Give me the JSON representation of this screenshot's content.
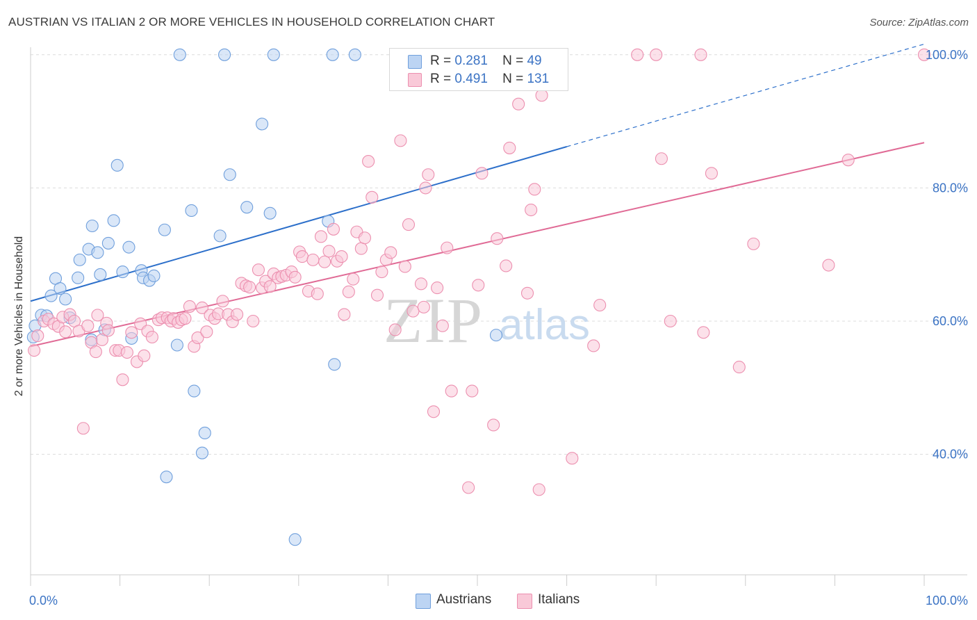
{
  "title": "AUSTRIAN VS ITALIAN 2 OR MORE VEHICLES IN HOUSEHOLD CORRELATION CHART",
  "source": "Source: ZipAtlas.com",
  "watermark": "ZIPatlas",
  "legend": {
    "r_label": "R =",
    "n_label": "N =",
    "rows": [
      {
        "r": "0.281",
        "n": "49",
        "color": "#a9c8f0"
      },
      {
        "r": "0.491",
        "n": "131",
        "color": "#f7b6c9"
      }
    ]
  },
  "bottom_legend": [
    {
      "label": "Austrians",
      "color": "#a9c8f0"
    },
    {
      "label": "Italians",
      "color": "#f7b6c9"
    }
  ],
  "chart_data": {
    "type": "scatter",
    "title": "AUSTRIAN VS ITALIAN 2 OR MORE VEHICLES IN HOUSEHOLD CORRELATION CHART",
    "xlabel": "",
    "ylabel": "2 or more Vehicles in Household",
    "xlim": [
      0,
      100
    ],
    "ylim": [
      20,
      102
    ],
    "x_tick_labels": [
      "0.0%",
      "100.0%"
    ],
    "y_ticks": [
      40,
      60,
      80,
      100
    ],
    "y_tick_labels": [
      "40.0%",
      "60.0%",
      "80.0%",
      "100.0%"
    ],
    "grid": true,
    "legend_position": "top-center",
    "series": [
      {
        "name": "Austrians",
        "color": "#6f9fdc",
        "fill": "#bcd4f3",
        "r": 0.281,
        "n": 49,
        "trend": {
          "x0": 0,
          "y0": 63.0,
          "x1": 60,
          "y1": 86.2,
          "dash_to_x": 100,
          "dash_to_y": 101.6,
          "color": "#2c6fca"
        },
        "points": [
          [
            0.3,
            57.6
          ],
          [
            0.5,
            59.3
          ],
          [
            1.2,
            60.9
          ],
          [
            1.8,
            60.8
          ],
          [
            2.3,
            63.8
          ],
          [
            2.8,
            66.4
          ],
          [
            3.3,
            64.9
          ],
          [
            3.9,
            63.3
          ],
          [
            4.4,
            60.5
          ],
          [
            5.3,
            66.5
          ],
          [
            5.5,
            69.2
          ],
          [
            6.5,
            70.8
          ],
          [
            6.8,
            57.2
          ],
          [
            6.9,
            74.3
          ],
          [
            7.5,
            70.3
          ],
          [
            7.8,
            67.0
          ],
          [
            8.3,
            58.7
          ],
          [
            8.7,
            71.7
          ],
          [
            9.3,
            75.1
          ],
          [
            9.7,
            83.4
          ],
          [
            10.3,
            67.4
          ],
          [
            11.0,
            71.1
          ],
          [
            11.3,
            57.4
          ],
          [
            12.4,
            67.6
          ],
          [
            12.6,
            66.5
          ],
          [
            13.3,
            66.1
          ],
          [
            13.8,
            66.8
          ],
          [
            15.0,
            73.7
          ],
          [
            15.2,
            36.6
          ],
          [
            16.4,
            56.4
          ],
          [
            16.7,
            100.0
          ],
          [
            18.0,
            76.6
          ],
          [
            18.3,
            49.5
          ],
          [
            19.2,
            40.2
          ],
          [
            19.5,
            43.2
          ],
          [
            21.2,
            72.8
          ],
          [
            21.7,
            100.0
          ],
          [
            22.3,
            82.0
          ],
          [
            24.2,
            77.1
          ],
          [
            25.9,
            89.6
          ],
          [
            26.8,
            76.2
          ],
          [
            27.2,
            100.0
          ],
          [
            29.6,
            27.2
          ],
          [
            33.3,
            75.0
          ],
          [
            33.8,
            100.0
          ],
          [
            34.0,
            53.5
          ],
          [
            36.3,
            100.0
          ],
          [
            41.3,
            100.0
          ],
          [
            52.1,
            57.9
          ]
        ]
      },
      {
        "name": "Italians",
        "color": "#ec8faf",
        "fill": "#f9c9d8",
        "r": 0.491,
        "n": 131,
        "trend": {
          "x0": 0,
          "y0": 56.2,
          "x1": 100,
          "y1": 86.8,
          "color": "#e06a95"
        },
        "points": [
          [
            0.4,
            55.6
          ],
          [
            0.8,
            57.8
          ],
          [
            1.5,
            60.0
          ],
          [
            2.0,
            60.3
          ],
          [
            2.6,
            59.6
          ],
          [
            3.1,
            59.2
          ],
          [
            3.6,
            60.6
          ],
          [
            3.9,
            58.4
          ],
          [
            4.4,
            61.0
          ],
          [
            4.9,
            60.0
          ],
          [
            5.4,
            58.5
          ],
          [
            5.9,
            43.9
          ],
          [
            6.4,
            59.3
          ],
          [
            6.8,
            56.8
          ],
          [
            7.3,
            55.4
          ],
          [
            7.5,
            60.9
          ],
          [
            8.0,
            57.2
          ],
          [
            8.5,
            59.7
          ],
          [
            8.7,
            58.6
          ],
          [
            9.5,
            55.6
          ],
          [
            9.9,
            55.6
          ],
          [
            10.3,
            51.2
          ],
          [
            10.8,
            55.3
          ],
          [
            11.3,
            58.3
          ],
          [
            11.9,
            53.9
          ],
          [
            12.3,
            59.6
          ],
          [
            12.7,
            54.8
          ],
          [
            13.1,
            58.5
          ],
          [
            13.6,
            57.6
          ],
          [
            14.3,
            60.2
          ],
          [
            14.7,
            60.5
          ],
          [
            15.3,
            60.5
          ],
          [
            15.7,
            60.0
          ],
          [
            16.0,
            60.4
          ],
          [
            16.5,
            59.8
          ],
          [
            16.9,
            60.2
          ],
          [
            17.3,
            60.4
          ],
          [
            17.8,
            62.2
          ],
          [
            18.3,
            56.2
          ],
          [
            18.7,
            57.5
          ],
          [
            19.2,
            62.0
          ],
          [
            19.7,
            58.4
          ],
          [
            20.1,
            60.9
          ],
          [
            20.6,
            60.4
          ],
          [
            21.0,
            61.1
          ],
          [
            21.5,
            63.0
          ],
          [
            22.1,
            61.0
          ],
          [
            22.6,
            59.9
          ],
          [
            23.1,
            61.0
          ],
          [
            23.6,
            65.7
          ],
          [
            24.1,
            65.3
          ],
          [
            24.5,
            65.1
          ],
          [
            24.9,
            60.0
          ],
          [
            25.5,
            67.7
          ],
          [
            25.9,
            65.0
          ],
          [
            26.3,
            66.0
          ],
          [
            26.8,
            65.2
          ],
          [
            27.2,
            67.1
          ],
          [
            27.7,
            66.5
          ],
          [
            28.1,
            66.7
          ],
          [
            28.6,
            66.9
          ],
          [
            29.2,
            67.4
          ],
          [
            29.6,
            66.6
          ],
          [
            30.1,
            70.4
          ],
          [
            30.4,
            69.7
          ],
          [
            31.1,
            64.5
          ],
          [
            31.6,
            69.2
          ],
          [
            32.1,
            64.1
          ],
          [
            32.5,
            72.7
          ],
          [
            32.9,
            68.9
          ],
          [
            33.4,
            70.5
          ],
          [
            33.9,
            73.8
          ],
          [
            34.3,
            69.0
          ],
          [
            34.8,
            69.7
          ],
          [
            35.1,
            61.0
          ],
          [
            35.6,
            64.4
          ],
          [
            36.1,
            66.3
          ],
          [
            36.5,
            73.4
          ],
          [
            37.0,
            70.9
          ],
          [
            37.4,
            72.5
          ],
          [
            37.8,
            84.0
          ],
          [
            38.2,
            78.6
          ],
          [
            38.8,
            63.9
          ],
          [
            39.3,
            67.4
          ],
          [
            39.8,
            69.2
          ],
          [
            40.3,
            70.3
          ],
          [
            40.8,
            58.7
          ],
          [
            41.4,
            87.1
          ],
          [
            41.9,
            68.2
          ],
          [
            42.3,
            74.5
          ],
          [
            42.8,
            61.5
          ],
          [
            43.7,
            65.6
          ],
          [
            44.0,
            62.1
          ],
          [
            44.2,
            80.0
          ],
          [
            44.5,
            82.0
          ],
          [
            45.1,
            46.4
          ],
          [
            45.5,
            65.0
          ],
          [
            46.1,
            59.3
          ],
          [
            46.6,
            71.0
          ],
          [
            47.1,
            49.5
          ],
          [
            49.0,
            35.0
          ],
          [
            49.4,
            49.5
          ],
          [
            50.1,
            65.4
          ],
          [
            50.5,
            82.2
          ],
          [
            51.8,
            44.4
          ],
          [
            52.2,
            72.4
          ],
          [
            53.2,
            68.3
          ],
          [
            53.6,
            86.0
          ],
          [
            54.6,
            92.6
          ],
          [
            55.6,
            64.2
          ],
          [
            56.0,
            76.7
          ],
          [
            56.4,
            79.8
          ],
          [
            56.9,
            34.7
          ],
          [
            57.2,
            93.9
          ],
          [
            60.6,
            39.4
          ],
          [
            63.0,
            56.3
          ],
          [
            63.7,
            62.4
          ],
          [
            67.9,
            100.0
          ],
          [
            70.0,
            100.0
          ],
          [
            70.6,
            84.4
          ],
          [
            71.6,
            60.0
          ],
          [
            75.0,
            100.0
          ],
          [
            75.3,
            58.3
          ],
          [
            76.2,
            82.2
          ],
          [
            79.3,
            53.1
          ],
          [
            80.9,
            71.6
          ],
          [
            89.3,
            68.4
          ],
          [
            91.5,
            84.2
          ],
          [
            100.0,
            100.0
          ]
        ]
      }
    ]
  }
}
